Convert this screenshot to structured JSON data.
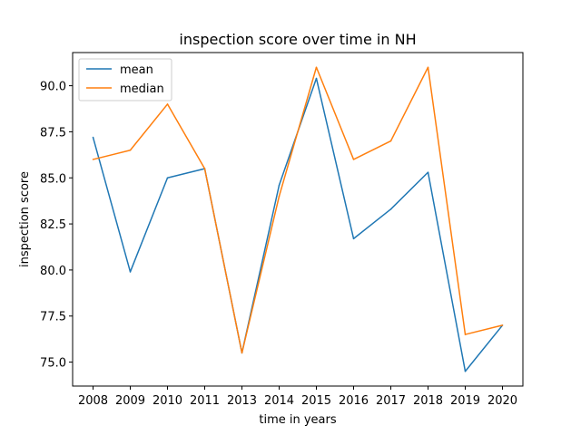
{
  "chart_data": {
    "type": "line",
    "title": "inspection score over time in NH",
    "xlabel": "time in years",
    "ylabel": "inspection score",
    "x": [
      2008,
      2009,
      2010,
      2011,
      2013,
      2014,
      2015,
      2016,
      2017,
      2018,
      2019,
      2020
    ],
    "series": [
      {
        "name": "mean",
        "color": "#1f77b4",
        "values": [
          87.2,
          79.9,
          85.0,
          85.5,
          75.5,
          84.6,
          90.4,
          81.7,
          83.3,
          85.3,
          74.5,
          77.0
        ]
      },
      {
        "name": "median",
        "color": "#ff7f0e",
        "values": [
          86.0,
          86.5,
          89.0,
          85.5,
          75.5,
          84.0,
          91.0,
          86.0,
          87.0,
          91.0,
          76.5,
          77.0
        ]
      }
    ],
    "yticks": [
      75.0,
      77.5,
      80.0,
      82.5,
      85.0,
      87.5,
      90.0
    ],
    "ylim": [
      73.7,
      91.8
    ],
    "grid": false,
    "legend": "upper-left"
  }
}
